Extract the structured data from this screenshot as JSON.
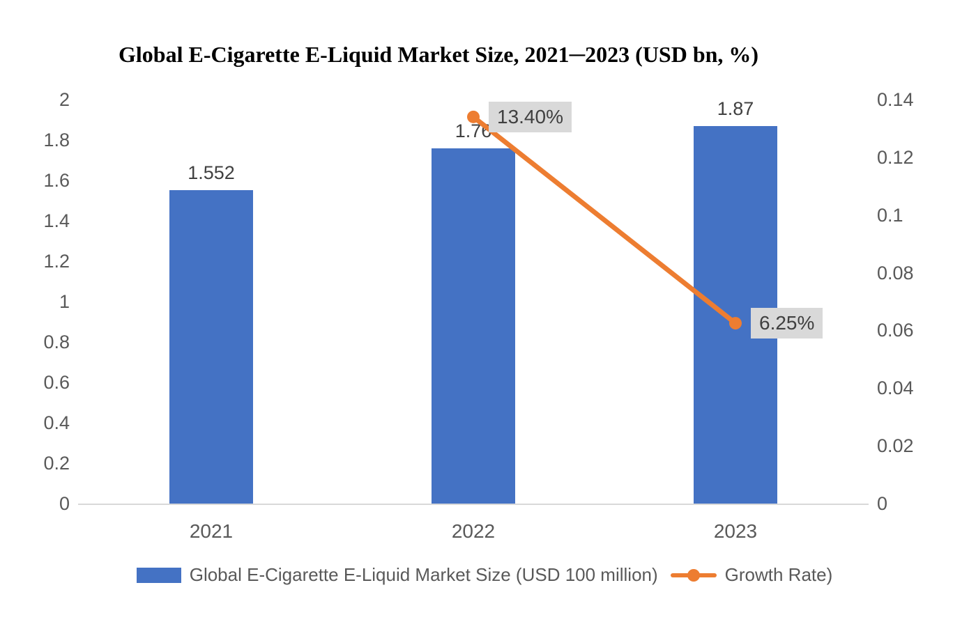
{
  "title": "Global E-Cigarette E-Liquid Market Size, 2021─2023 (USD bn, %)",
  "colors": {
    "bar_blue": "#4472C4",
    "line_orange": "#ED7D31",
    "axis_text_gray": "#595959",
    "data_label_gray": "#404040",
    "axis_line_gray": "#D9D9D9",
    "callout_bg_gray": "#D9D9D9"
  },
  "chart_data": {
    "type": "bar",
    "title": "Global E-Cigarette E-Liquid Market Size, 2021─2023 (USD bn, %)",
    "categories": [
      "2021",
      "2022",
      "2023"
    ],
    "series": [
      {
        "name": "Global E-Cigarette E-Liquid Market Size (USD 100 million)",
        "type": "bar",
        "axis": "left",
        "color": "#4472C4",
        "values": [
          1.552,
          1.76,
          1.87
        ],
        "labels": [
          "1.552",
          "1.76",
          "1.87"
        ]
      },
      {
        "name": "Growth Rate)",
        "type": "line",
        "axis": "right",
        "color": "#ED7D31",
        "values": [
          null,
          0.134,
          0.0625
        ],
        "labels": [
          null,
          "13.40%",
          "6.25%"
        ]
      }
    ],
    "left_axis": {
      "min": 0,
      "max": 2,
      "ticks": [
        "2",
        "1.8",
        "1.6",
        "1.4",
        "1.2",
        "1",
        "0.8",
        "0.6",
        "0.4",
        "0.2",
        "0"
      ]
    },
    "right_axis": {
      "min": 0,
      "max": 0.14,
      "ticks": [
        "0.14",
        "0.12",
        "0.1",
        "0.08",
        "0.06",
        "0.04",
        "0.02",
        "0"
      ]
    },
    "grid": false,
    "legend_position": "bottom",
    "xlabel": "",
    "ylabel": ""
  },
  "legend": {
    "items": [
      {
        "label": "Global E-Cigarette E-Liquid Market Size (USD 100 million)",
        "marker": "bar-swatch",
        "color": "#4472C4"
      },
      {
        "label": "Growth Rate)",
        "marker": "line-dot-marker",
        "color": "#ED7D31"
      }
    ]
  }
}
